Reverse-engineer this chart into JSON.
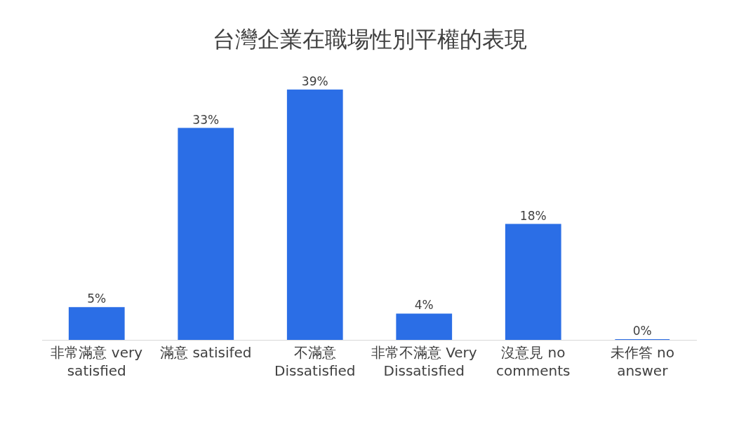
{
  "chart_data": {
    "type": "bar",
    "title": "台灣企業在職場性別平權的表現",
    "categories": [
      "非常滿意 very satisfied",
      "滿意 satisifed",
      "不滿意 Dissatisfied",
      "非常不滿意 Very Dissatisfied",
      "沒意見 no comments",
      "未作答 no answer"
    ],
    "values": [
      5,
      33,
      39,
      4,
      18,
      0
    ],
    "value_labels": [
      "5%",
      "33%",
      "39%",
      "4%",
      "18%",
      "0%"
    ],
    "color": "#2b6ee6"
  }
}
